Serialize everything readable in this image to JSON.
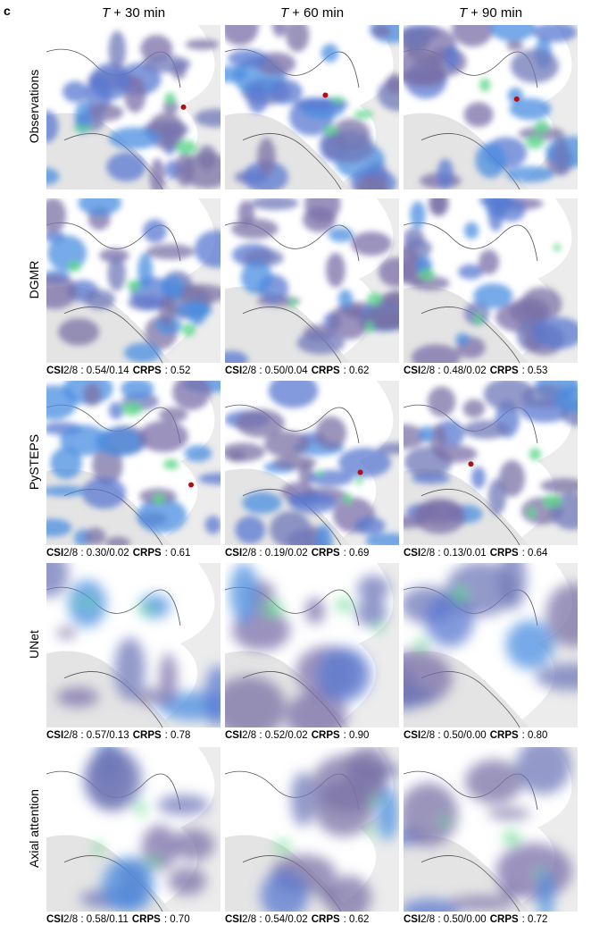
{
  "panel_label": "c",
  "columns": [
    [
      "T",
      "+ 30 min"
    ],
    [
      "T",
      "+ 60 min"
    ],
    [
      "T",
      "+ 90 min"
    ]
  ],
  "rows": [
    {
      "label": "Observations"
    },
    {
      "label": "DGMR",
      "metrics": [
        [
          "CSI",
          "2/8 : 0.54/0.14",
          "CRPS",
          ": 0.52"
        ],
        [
          "CSI",
          "2/8 : 0.50/0.04",
          "CRPS",
          ": 0.62"
        ],
        [
          "CSI",
          "2/8 : 0.48/0.02",
          "CRPS",
          ": 0.53"
        ]
      ]
    },
    {
      "label": "PySTEPS",
      "metrics": [
        [
          "CSI",
          "2/8 : 0.30/0.02",
          "CRPS",
          ": 0.61"
        ],
        [
          "CSI",
          "2/8 : 0.19/0.02",
          "CRPS",
          ": 0.69"
        ],
        [
          "CSI",
          "2/8 : 0.13/0.01",
          "CRPS",
          ": 0.64"
        ]
      ]
    },
    {
      "label": "UNet",
      "metrics": [
        [
          "CSI",
          "2/8 : 0.57/0.13",
          "CRPS",
          ": 0.78"
        ],
        [
          "CSI",
          "2/8 : 0.52/0.02",
          "CRPS",
          ": 0.90"
        ],
        [
          "CSI",
          "2/8 : 0.50/0.00",
          "CRPS",
          ": 0.80"
        ]
      ]
    },
    {
      "label": "Axial attention",
      "metrics": [
        [
          "CSI",
          "2/8 : 0.58/0.11",
          "CRPS",
          ": 0.70"
        ],
        [
          "CSI",
          "2/8 : 0.54/0.02",
          "CRPS",
          ": 0.62"
        ],
        [
          "CSI",
          "2/8 : 0.50/0.00",
          "CRPS",
          ": 0.72"
        ]
      ]
    }
  ]
}
